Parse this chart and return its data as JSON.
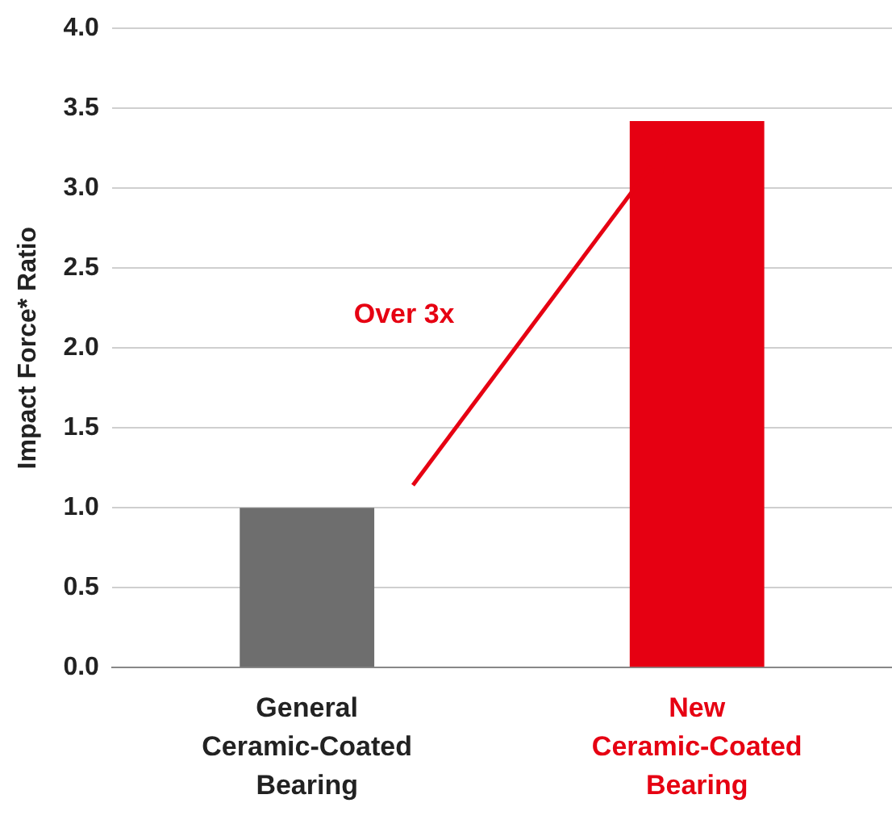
{
  "chart_data": {
    "type": "bar",
    "ylabel": "Impact Force* Ratio",
    "categories": [
      "General\nCeramic-Coated\nBearing",
      "New\nCeramic-Coated\nBearing"
    ],
    "values": [
      1.0,
      3.42
    ],
    "colors": [
      "#6e6e6e",
      "#e60012"
    ],
    "ylim": [
      0,
      4
    ],
    "yticks": [
      {
        "value": 0,
        "label": "0.0"
      },
      {
        "value": 0.5,
        "label": "0.5"
      },
      {
        "value": 1,
        "label": "1.0"
      },
      {
        "value": 1.5,
        "label": "1.5"
      },
      {
        "value": 2,
        "label": "2.0"
      },
      {
        "value": 2.5,
        "label": "2.5"
      },
      {
        "value": 3,
        "label": "3.0"
      },
      {
        "value": 3.5,
        "label": "3.5"
      },
      {
        "value": 4,
        "label": "4.0"
      }
    ],
    "grid": "y",
    "legend": false,
    "annotations": [
      "Over 3x"
    ]
  }
}
